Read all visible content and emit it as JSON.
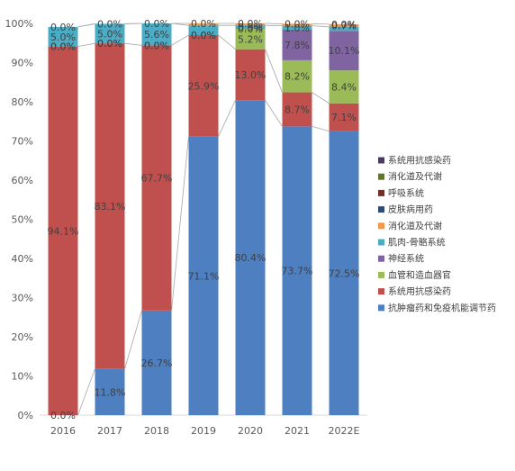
{
  "chart_data": {
    "type": "bar",
    "stacked": true,
    "percent": true,
    "categories": [
      "2016",
      "2017",
      "2018",
      "2019",
      "2020",
      "2021",
      "2022E"
    ],
    "ylim": [
      0,
      100
    ],
    "yticks": [
      "0%",
      "10%",
      "20%",
      "30%",
      "40%",
      "50%",
      "60%",
      "70%",
      "80%",
      "90%",
      "100%"
    ],
    "grid": false,
    "legend_position": "right",
    "series": [
      {
        "name": "抗肿瘤药和免疫机能调节药",
        "color": "#4e7fc0",
        "values": [
          0.0,
          11.8,
          26.7,
          71.1,
          80.4,
          73.7,
          72.5
        ],
        "labels": [
          "0.0%",
          "11.8%",
          "26.7%",
          "71.1%",
          "80.4%",
          "73.7%",
          "72.5%"
        ]
      },
      {
        "name": "系统用抗感染药",
        "color": "#c0504d",
        "values": [
          94.1,
          83.1,
          67.7,
          25.9,
          13.0,
          8.7,
          7.1
        ],
        "labels": [
          "94.1%",
          "83.1%",
          "67.7%",
          "25.9%",
          "13.0%",
          "8.7%",
          "7.1%"
        ]
      },
      {
        "name": "血管和造血器官",
        "color": "#9bbb59",
        "values": [
          0.0,
          0.0,
          0.0,
          0.0,
          5.2,
          8.2,
          8.4
        ],
        "labels": [
          "0.0%",
          "0.0%",
          "0.0%",
          "0.0%",
          "5.2%",
          "8.2%",
          "8.4%"
        ]
      },
      {
        "name": "神经系统",
        "color": "#8064a2",
        "values": [
          0.0,
          0.0,
          0.0,
          0.0,
          0.0,
          7.8,
          10.1
        ],
        "labels": [
          "0.0%",
          "0.0%",
          "0.0%",
          "0.0%",
          "0.0%",
          "7.8%",
          "10.1%"
        ]
      },
      {
        "name": "肌肉-骨骼系统",
        "color": "#4bacc6",
        "values": [
          5.0,
          5.0,
          5.6,
          2.5,
          0.9,
          1.0,
          1.0
        ],
        "labels": [
          "5.0%",
          "5.0%",
          "5.6%",
          "",
          "0.9%",
          "1.0%",
          ""
        ]
      },
      {
        "name": "消化道及代谢",
        "color": "#f79646",
        "values": [
          0.0,
          0.0,
          0.0,
          0.5,
          0.5,
          0.5,
          0.7
        ],
        "labels": [
          "",
          "",
          "",
          "",
          "",
          "",
          "0.7%"
        ]
      },
      {
        "name": "皮肤病用药",
        "color": "#2c4d75",
        "values": [
          0.0,
          0.0,
          0.0,
          0.0,
          0.0,
          0.0,
          0.0
        ],
        "labels": [
          "",
          "",
          "",
          "",
          "",
          "",
          ""
        ]
      },
      {
        "name": "呼吸系统",
        "color": "#772c2a",
        "values": [
          0.0,
          0.0,
          0.0,
          0.0,
          0.0,
          0.0,
          0.0
        ],
        "labels": [
          "",
          "",
          "",
          "",
          "",
          "",
          ""
        ]
      },
      {
        "name": "消化道及代谢",
        "color": "#5f7530",
        "values": [
          0.0,
          0.0,
          0.0,
          0.0,
          0.0,
          0.0,
          0.0
        ],
        "labels": [
          "",
          "",
          "",
          "",
          "",
          "",
          ""
        ]
      },
      {
        "name": "系统用抗感染药",
        "color": "#4d3b62",
        "values": [
          0.0,
          0.0,
          0.0,
          0.0,
          0.0,
          0.0,
          0.0
        ],
        "labels": [
          "0.0%",
          "0.0%",
          "0.0%",
          "0.0%",
          "0.0%",
          "0.0%",
          "0.0%"
        ]
      }
    ]
  }
}
